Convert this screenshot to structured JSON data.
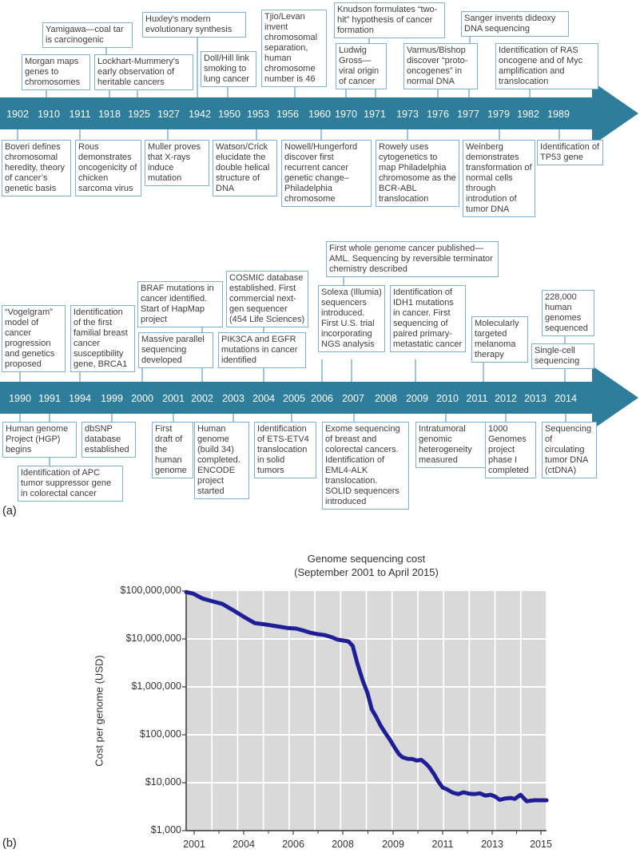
{
  "panel_labels": {
    "a": "(a)",
    "b": "(b)"
  },
  "colors": {
    "timeline_bar": "#2e7e9b",
    "box_border": "#7cb0d9",
    "year_text": "#ffffff",
    "line": "#1e1e96"
  },
  "timeline_a": {
    "years": [
      "1902",
      "1910",
      "1911",
      "1918",
      "1925",
      "1927",
      "1942",
      "1950",
      "1953",
      "1956",
      "1960",
      "1970",
      "1971",
      "1973",
      "1976",
      "1977",
      "1979",
      "1982",
      "1989"
    ],
    "events_above": [
      {
        "year": "1910",
        "label": "Morgan maps genes to chromosomes"
      },
      {
        "year": "1918",
        "label": "Yamigawa—coal tar is carcinogenic"
      },
      {
        "year": "1925",
        "label": "Lockhart-Mummery's early observation of heritable cancers"
      },
      {
        "year": "1942",
        "label": "Huxley's modern evolutionary synthesis"
      },
      {
        "year": "1950",
        "label": "Doll/Hill link smoking to lung cancer"
      },
      {
        "year": "1956",
        "label": "Tjio/Levan invent chromosomal separation, human chromosome number is 46"
      },
      {
        "year": "1971",
        "label": "Knudson formulates “two-hit” hypothesis of cancer formation"
      },
      {
        "year": "1970",
        "label": "Ludwig Gross—viral origin of cancer"
      },
      {
        "year": "1976",
        "label": "Varmus/Bishop discover “proto-oncogenes” in normal DNA"
      },
      {
        "year": "1977",
        "label": "Sanger invents dideoxy DNA sequencing"
      },
      {
        "year": "1982",
        "label": "Identification of RAS oncogene and of Myc amplification and translocation"
      }
    ],
    "events_below": [
      {
        "year": "1902",
        "label": "Boveri defines chromosomal heredity, theory of cancer’s genetic basis"
      },
      {
        "year": "1911",
        "label": "Rous demonstrates oncogenicity of chicken sarcoma virus"
      },
      {
        "year": "1927",
        "label": "Muller proves that X-rays induce mutation"
      },
      {
        "year": "1953",
        "label": "Watson/Crick elucidate the double helical structure of DNA"
      },
      {
        "year": "1960",
        "label": "Nowell/Hungerford discover first recurrent cancer genetic change–Philadelphia chromosome"
      },
      {
        "year": "1973",
        "label": "Rowely uses cytogenetics to map Philadelphia chromosome as the BCR-ABL translocation"
      },
      {
        "year": "1979",
        "label": "Weinberg demonstrates transformation of normal cells through introdution of tumor DNA"
      },
      {
        "year": "1989",
        "label": "Identification of TP53 gene"
      }
    ]
  },
  "timeline_b": {
    "years": [
      "1990",
      "1991",
      "1994",
      "1999",
      "2000",
      "2001",
      "2002",
      "2003",
      "2004",
      "2005",
      "2006",
      "2007",
      "2008",
      "2009",
      "2010",
      "2011",
      "2012",
      "2013",
      "2014"
    ],
    "events_above": [
      {
        "year": "1990",
        "label": "“Vogelgram” model of cancer progression and genetics proposed"
      },
      {
        "year": "1994",
        "label": "Identification of the first familial breast cancer susceptibility gene, BRCA1"
      },
      {
        "year": "2002",
        "label": "BRAF mutations in cancer identified. Start of HapMap project"
      },
      {
        "year": "2000",
        "label": "Massive parallel sequencing developed"
      },
      {
        "year": "2004",
        "label": "COSMIC database established. First commercial next-gen sequencer (454 Life Sciences)"
      },
      {
        "year": "2004",
        "label": "PIK3CA and EGFR mutations in cancer identified"
      },
      {
        "year": "2008",
        "label": "First whole genome cancer published—AML. Sequencing by reversible terminator chemistry described"
      },
      {
        "year": "2006",
        "label": "Solexa (Illumia) sequencers introduced. First U.S. trial incorporating NGS analysis"
      },
      {
        "year": "2009",
        "label": "Identification of IDH1 mutations in cancer. First sequencing of paired primary-metastatic cancer"
      },
      {
        "year": "2011",
        "label": "Molecularly targeted melanoma therapy"
      },
      {
        "year": "2014",
        "label": "228,000 human genomes sequenced"
      },
      {
        "year": "2013",
        "label": "Single-cell sequencing"
      }
    ],
    "events_below": [
      {
        "year": "1990",
        "label": "Human genome Project (HGP) begins"
      },
      {
        "year": "1999",
        "label": "dbSNP database established"
      },
      {
        "year": "1991",
        "label": "Identification of APC tumor suppressor gene in colorectal cancer"
      },
      {
        "year": "2001",
        "label": "First draft of the human genome"
      },
      {
        "year": "2003",
        "label": "Human genome (build 34) completed. ENCODE project started"
      },
      {
        "year": "2005",
        "label": "Identification of ETS-ETV4 translocation in solid tumors"
      },
      {
        "year": "2007",
        "label": "Exome sequencing of breast and colorectal cancers. Identification of EML4-ALK translocation. SOLID sequencers introduced"
      },
      {
        "year": "2010",
        "label": "Intratumoral genomic heterogeneity measured"
      },
      {
        "year": "2012",
        "label": "1000 Genomes project phase I completed"
      },
      {
        "year": "2014",
        "label": "Sequencing of circulating tumor DNA (ctDNA)"
      }
    ]
  },
  "chart_data": {
    "type": "line",
    "title": "Genome sequencing cost",
    "subtitle": "(September 2001 to April 2015)",
    "xlabel": "",
    "ylabel": "Cost per genome (USD)",
    "x_tick_labels": [
      "2001",
      "2004",
      "2006",
      "2008",
      "2009",
      "2011",
      "2013",
      "2015"
    ],
    "y_axis": {
      "scale": "log",
      "min": 1000,
      "max": 100000000,
      "tick_labels": [
        "$100,000,000",
        "$10,000,000",
        "$1,000,000",
        "$100,000",
        "$10,000",
        "$1,000"
      ]
    },
    "grid": "on",
    "plot_bg": "#d9d9d9",
    "grid_color": "#ffffff",
    "legend": "none",
    "series": [
      {
        "name": "Cost per genome",
        "color": "#1e1e96",
        "points": [
          [
            0.0,
            95000000
          ],
          [
            0.02,
            88000000
          ],
          [
            0.045,
            70000000
          ],
          [
            0.07,
            62000000
          ],
          [
            0.1,
            54000000
          ],
          [
            0.13,
            40000000
          ],
          [
            0.16,
            29000000
          ],
          [
            0.19,
            21500000
          ],
          [
            0.22,
            20000000
          ],
          [
            0.25,
            18500000
          ],
          [
            0.28,
            17000000
          ],
          [
            0.305,
            16500000
          ],
          [
            0.325,
            15000000
          ],
          [
            0.345,
            13500000
          ],
          [
            0.365,
            12600000
          ],
          [
            0.385,
            12000000
          ],
          [
            0.405,
            10800000
          ],
          [
            0.42,
            9700000
          ],
          [
            0.435,
            9300000
          ],
          [
            0.45,
            8900000
          ],
          [
            0.462,
            7200000
          ],
          [
            0.475,
            3100000
          ],
          [
            0.49,
            1350000
          ],
          [
            0.503,
            750000
          ],
          [
            0.515,
            342000
          ],
          [
            0.528,
            232000
          ],
          [
            0.54,
            154000
          ],
          [
            0.553,
            108000
          ],
          [
            0.565,
            80000
          ],
          [
            0.578,
            55000
          ],
          [
            0.59,
            40000
          ],
          [
            0.6,
            34000
          ],
          [
            0.615,
            31500
          ],
          [
            0.628,
            31300
          ],
          [
            0.64,
            29000
          ],
          [
            0.652,
            30000
          ],
          [
            0.663,
            26000
          ],
          [
            0.675,
            21000
          ],
          [
            0.688,
            15000
          ],
          [
            0.7,
            10500
          ],
          [
            0.712,
            7900
          ],
          [
            0.725,
            7200
          ],
          [
            0.74,
            6200
          ],
          [
            0.755,
            5800
          ],
          [
            0.77,
            6300
          ],
          [
            0.785,
            5900
          ],
          [
            0.8,
            5800
          ],
          [
            0.815,
            6000
          ],
          [
            0.83,
            5400
          ],
          [
            0.845,
            5600
          ],
          [
            0.858,
            5100
          ],
          [
            0.87,
            4400
          ],
          [
            0.885,
            4700
          ],
          [
            0.9,
            4800
          ],
          [
            0.912,
            4600
          ],
          [
            0.928,
            5600
          ],
          [
            0.945,
            4100
          ],
          [
            0.965,
            4300
          ],
          [
            1.0,
            4300
          ]
        ]
      }
    ]
  }
}
